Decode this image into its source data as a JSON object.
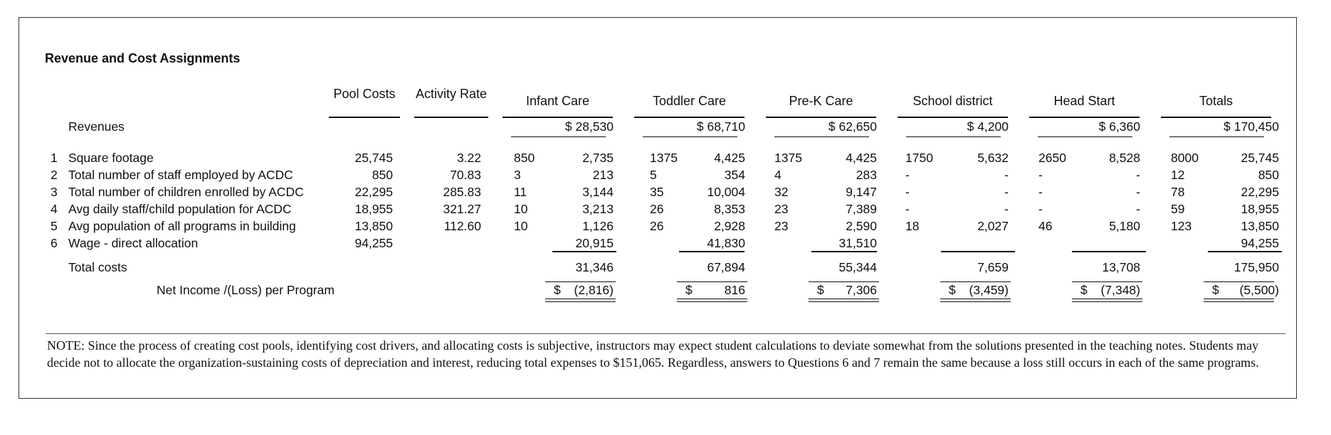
{
  "title": "Revenue and Cost Assignments",
  "headers": {
    "pool": "Pool Costs",
    "activity": "Activity Rate",
    "programs": [
      "Infant Care",
      "Toddler Care",
      "Pre-K Care",
      "School district",
      "Head Start",
      "Totals"
    ]
  },
  "revenues": {
    "label": "Revenues",
    "values": [
      "$ 28,530",
      "$ 68,710",
      "$ 62,650",
      "$ 4,200",
      "$ 6,360",
      "$ 170,450"
    ]
  },
  "rows": [
    {
      "num": "1",
      "label": "Square footage",
      "pool": "25,745",
      "rate": "3.22",
      "drivers": [
        "850",
        "1375",
        "1375",
        "1750",
        "2650",
        "8000"
      ],
      "costs": [
        "2,735",
        "4,425",
        "4,425",
        "5,632",
        "8,528",
        "25,745"
      ]
    },
    {
      "num": "2",
      "label": "Total number of staff employed by ACDC",
      "pool": "850",
      "rate": "70.83",
      "drivers": [
        "3",
        "5",
        "4",
        "-",
        "-",
        "12"
      ],
      "costs": [
        "213",
        "354",
        "283",
        "-",
        "-",
        "850"
      ]
    },
    {
      "num": "3",
      "label": "Total number of children enrolled by ACDC",
      "pool": "22,295",
      "rate": "285.83",
      "drivers": [
        "11",
        "35",
        "32",
        "-",
        "-",
        "78"
      ],
      "costs": [
        "3,144",
        "10,004",
        "9,147",
        "-",
        "-",
        "22,295"
      ]
    },
    {
      "num": "4",
      "label": "Avg daily staff/child population for ACDC",
      "pool": "18,955",
      "rate": "321.27",
      "drivers": [
        "10",
        "26",
        "23",
        "-",
        "-",
        "59"
      ],
      "costs": [
        "3,213",
        "8,353",
        "7,389",
        "-",
        "-",
        "18,955"
      ]
    },
    {
      "num": "5",
      "label": "Avg population of all programs in building",
      "pool": "13,850",
      "rate": "112.60",
      "drivers": [
        "10",
        "26",
        "23",
        "18",
        "46",
        "123"
      ],
      "costs": [
        "1,126",
        "2,928",
        "2,590",
        "2,027",
        "5,180",
        "13,850"
      ]
    },
    {
      "num": "6",
      "label": "Wage - direct allocation",
      "pool": "94,255",
      "rate": "",
      "drivers": [
        "",
        "",
        "",
        "",
        "",
        ""
      ],
      "costs": [
        "20,915",
        "41,830",
        "31,510",
        "",
        "",
        "94,255"
      ]
    }
  ],
  "total_costs": {
    "label": "Total costs",
    "values": [
      "31,346",
      "67,894",
      "55,344",
      "7,659",
      "13,708",
      "175,950"
    ]
  },
  "net_income": {
    "label": "Net Income /(Loss) per Program",
    "values": [
      "(2,816)",
      "816",
      "7,306",
      "(3,459)",
      "(7,348)",
      "(5,500)"
    ],
    "currency": "$"
  },
  "note": "NOTE: Since the process of creating cost pools, identifying cost drivers, and allocating costs is subjective, instructors may expect student calculations to deviate somewhat from the solutions presented in the teaching notes. Students may decide not to allocate the organization-sustaining costs of depreciation and interest, reducing total expenses to $151,065. Regardless, answers to Questions 6 and 7 remain the same because a loss still occurs in each of the same programs."
}
